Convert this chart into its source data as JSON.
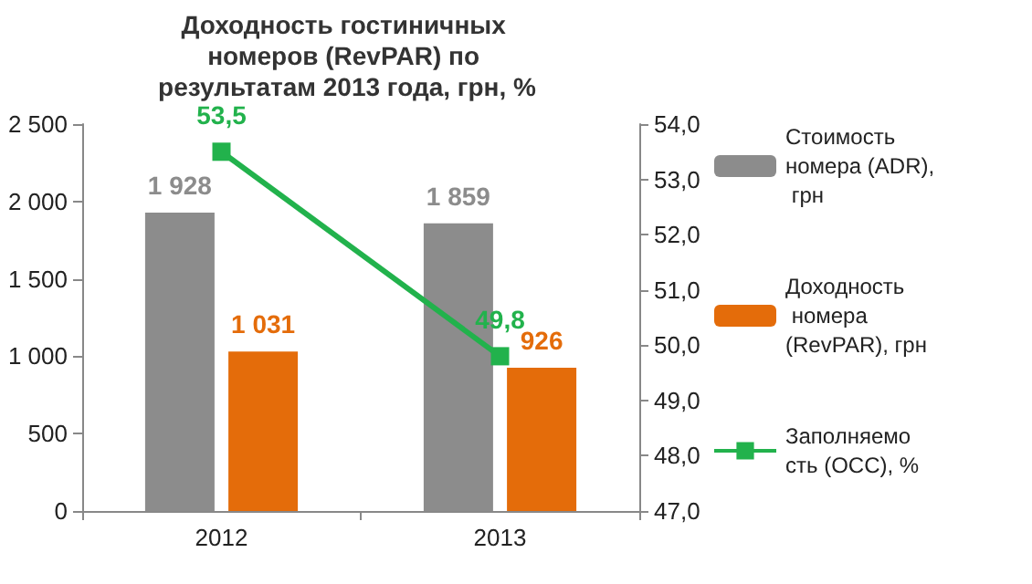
{
  "chart_data": {
    "type": "bar",
    "title": "Доходность гостиничных номеров (RevPAR) по результатам 2013 года, грн, %",
    "categories": [
      "2012",
      "2013"
    ],
    "series": [
      {
        "name": "Стоимость номера (ADR), грн",
        "color": "#8c8c8c",
        "values": [
          1928,
          1859
        ],
        "value_labels": [
          "1 928",
          "1 859"
        ]
      },
      {
        "name": "Доходность номера (RevPAR), грн",
        "color": "#e46c0a",
        "values": [
          1031,
          926
        ],
        "value_labels": [
          "1 031",
          "926"
        ]
      },
      {
        "name": "Заполняемость (OCC), %",
        "type": "line",
        "axis": "y2",
        "color": "#22b24c",
        "values": [
          53.5,
          49.8
        ],
        "value_labels": [
          "53,5",
          "49,8"
        ]
      }
    ],
    "ylim": [
      0,
      2500
    ],
    "yticks": [
      0,
      {
        "value": 500,
        "label": "500"
      },
      {
        "value": 1000,
        "label": "1 000"
      },
      {
        "value": 1500,
        "label": "1 500"
      },
      {
        "value": 2000,
        "label": "2 000"
      },
      {
        "value": 2500,
        "label": "2 500"
      }
    ],
    "y2lim": [
      47,
      54
    ],
    "y2ticks": [
      {
        "value": 47,
        "label": "47,0"
      },
      {
        "value": 48,
        "label": "48,0"
      },
      {
        "value": 49,
        "label": "49,0"
      },
      {
        "value": 50,
        "label": "50,0"
      },
      {
        "value": 51,
        "label": "51,0"
      },
      {
        "value": 52,
        "label": "52,0"
      },
      {
        "value": 53,
        "label": "53,0"
      },
      {
        "value": 54,
        "label": "54,0"
      }
    ],
    "grid": false,
    "legend": "right",
    "marker": "square",
    "line_style": "solid"
  }
}
